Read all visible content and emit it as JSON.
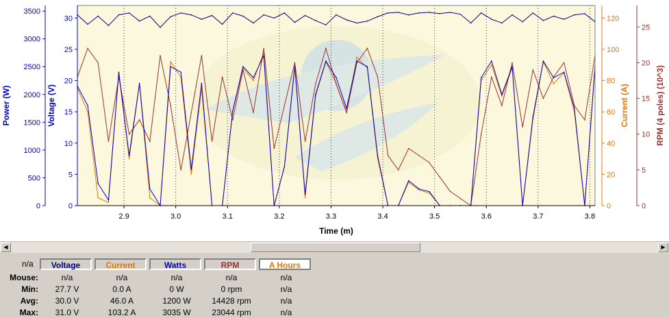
{
  "chart_data": {
    "type": "line",
    "xlabel": "Time (m)",
    "xlim": [
      2.81,
      3.81
    ],
    "x_ticks": [
      "2.9",
      "3.0",
      "3.1",
      "3.2",
      "3.3",
      "3.4",
      "3.5",
      "3.6",
      "3.7",
      "3.8"
    ],
    "axes": {
      "power": {
        "label": "Power (W)",
        "ylim": [
          0,
          3600
        ],
        "ticks": [
          "0",
          "500",
          "1000",
          "1500",
          "2000",
          "2500",
          "3000",
          "3500"
        ],
        "color": "#0000cc"
      },
      "voltage": {
        "label": "Voltage (V)",
        "ylim": [
          0,
          32
        ],
        "ticks": [
          "0",
          "5",
          "10",
          "15",
          "20",
          "25",
          "30"
        ],
        "color": "#0000cc"
      },
      "current": {
        "label": "Current (A)",
        "ylim": [
          0,
          128
        ],
        "ticks": [
          "0",
          "20",
          "40",
          "60",
          "80",
          "100",
          "120"
        ],
        "color": "#e07800"
      },
      "rpm": {
        "label": "RPM (4 poles) (10^3)",
        "ylim": [
          0,
          28
        ],
        "ticks": [
          "0",
          "5",
          "10",
          "15",
          "20",
          "25"
        ],
        "color": "#993333"
      }
    },
    "series": [
      {
        "name": "Voltage",
        "color": "#000080",
        "axis": "voltage",
        "x": [
          2.81,
          2.83,
          2.85,
          2.87,
          2.89,
          2.91,
          2.93,
          2.95,
          2.97,
          2.99,
          3.01,
          3.03,
          3.05,
          3.07,
          3.09,
          3.11,
          3.13,
          3.15,
          3.17,
          3.19,
          3.21,
          3.23,
          3.25,
          3.27,
          3.29,
          3.31,
          3.33,
          3.35,
          3.37,
          3.39,
          3.41,
          3.43,
          3.45,
          3.47,
          3.49,
          3.51,
          3.53,
          3.55,
          3.57,
          3.59,
          3.61,
          3.63,
          3.65,
          3.67,
          3.69,
          3.71,
          3.73,
          3.75,
          3.77,
          3.79,
          3.81
        ],
        "values": [
          30.5,
          29.0,
          30.3,
          28.8,
          30.5,
          30.8,
          29.5,
          30.3,
          28.5,
          30.2,
          30.8,
          30.5,
          29.8,
          30.4,
          29.0,
          30.8,
          30.3,
          29.2,
          30.5,
          30.0,
          30.8,
          29.3,
          30.4,
          29.6,
          28.9,
          30.5,
          29.7,
          29.2,
          29.5,
          30.2,
          30.8,
          30.9,
          30.5,
          30.8,
          30.9,
          30.7,
          30.9,
          30.6,
          29.2,
          30.8,
          29.8,
          29.2,
          30.5,
          29.4,
          30.8,
          29.6,
          30.3,
          29.8,
          30.5,
          30.7,
          29.4
        ]
      },
      {
        "name": "Current",
        "color": "#e07800",
        "axis": "current",
        "x": [
          2.81,
          2.83,
          2.85,
          2.87,
          2.89,
          2.91,
          2.93,
          2.95,
          2.97,
          2.99,
          3.01,
          3.03,
          3.05,
          3.07,
          3.09,
          3.11,
          3.13,
          3.15,
          3.17,
          3.19,
          3.21,
          3.23,
          3.25,
          3.27,
          3.29,
          3.31,
          3.33,
          3.35,
          3.37,
          3.39,
          3.41,
          3.43,
          3.45,
          3.47,
          3.49,
          3.51,
          3.53,
          3.55,
          3.57,
          3.59,
          3.61,
          3.63,
          3.65,
          3.67,
          3.69,
          3.71,
          3.73,
          3.75,
          3.77,
          3.79,
          3.81
        ],
        "values": [
          75,
          60,
          5,
          2,
          85,
          30,
          78,
          5,
          0,
          92,
          82,
          20,
          75,
          0,
          0,
          60,
          88,
          80,
          98,
          0,
          25,
          90,
          5,
          70,
          92,
          78,
          60,
          95,
          88,
          30,
          0,
          0,
          15,
          10,
          8,
          0,
          0,
          0,
          0,
          80,
          90,
          70,
          88,
          0,
          55,
          92,
          78,
          85,
          60,
          0,
          90
        ]
      },
      {
        "name": "RPM",
        "color": "#993333",
        "axis": "rpm",
        "x": [
          2.81,
          2.83,
          2.85,
          2.87,
          2.89,
          2.91,
          2.93,
          2.95,
          2.97,
          2.99,
          3.01,
          3.03,
          3.05,
          3.07,
          3.09,
          3.11,
          3.13,
          3.15,
          3.17,
          3.19,
          3.21,
          3.23,
          3.25,
          3.27,
          3.29,
          3.31,
          3.33,
          3.35,
          3.37,
          3.39,
          3.41,
          3.43,
          3.45,
          3.47,
          3.49,
          3.51,
          3.53,
          3.55,
          3.57,
          3.59,
          3.61,
          3.63,
          3.65,
          3.67,
          3.69,
          3.71,
          3.73,
          3.75,
          3.77,
          3.79,
          3.81
        ],
        "values": [
          18,
          22,
          20,
          9,
          18,
          10,
          12,
          9,
          21,
          14,
          5,
          13,
          21,
          9,
          18,
          12,
          19,
          13,
          22,
          8,
          14,
          20,
          9,
          17,
          22,
          17,
          13,
          20,
          22,
          18,
          7,
          5,
          8,
          7,
          6,
          4,
          2,
          1,
          0,
          10,
          18,
          14,
          20,
          11,
          19,
          15,
          18,
          20,
          14,
          12,
          21
        ]
      },
      {
        "name": "Watts",
        "color": "#0000cc",
        "axis": "power",
        "x": [
          2.81,
          2.83,
          2.85,
          2.87,
          2.89,
          2.91,
          2.93,
          2.95,
          2.97,
          2.99,
          3.01,
          3.03,
          3.05,
          3.07,
          3.09,
          3.11,
          3.13,
          3.15,
          3.17,
          3.19,
          3.21,
          3.23,
          3.25,
          3.27,
          3.29,
          3.31,
          3.33,
          3.35,
          3.37,
          3.39,
          3.41,
          3.43,
          3.45,
          3.47,
          3.49,
          3.51,
          3.53,
          3.55,
          3.57,
          3.59,
          3.61,
          3.63,
          3.65,
          3.67,
          3.69,
          3.71,
          3.73,
          3.75,
          3.77,
          3.79,
          3.81
        ],
        "values": [
          2150,
          1800,
          400,
          100,
          2400,
          900,
          2200,
          300,
          0,
          2500,
          2400,
          650,
          2200,
          0,
          0,
          1700,
          2500,
          2300,
          2700,
          0,
          700,
          2500,
          200,
          2000,
          2600,
          2300,
          1750,
          2600,
          2500,
          900,
          0,
          0,
          450,
          300,
          250,
          0,
          0,
          0,
          0,
          2300,
          2600,
          2000,
          2500,
          0,
          1600,
          2600,
          2300,
          2400,
          1750,
          0,
          2500
        ]
      }
    ]
  },
  "stats": {
    "corner": "n/a",
    "columns": [
      "Voltage",
      "Current",
      "Watts",
      "RPM",
      "A Hours"
    ],
    "column_colors": [
      "#000080",
      "#e07800",
      "#0000cc",
      "#993333",
      "#e07800"
    ],
    "rows": [
      {
        "label": "Mouse:",
        "values": [
          "n/a",
          "n/a",
          "n/a",
          "n/a",
          "n/a"
        ]
      },
      {
        "label": "Min:",
        "values": [
          "27.7 V",
          "0.0 A",
          "0 W",
          "0 rpm",
          "n/a"
        ]
      },
      {
        "label": "Avg:",
        "values": [
          "30.0 V",
          "46.0 A",
          "1200 W",
          "14428 rpm",
          "n/a"
        ]
      },
      {
        "label": "Max:",
        "values": [
          "31.0 V",
          "103.2 A",
          "3035 W",
          "23044 rpm",
          "n/a"
        ]
      }
    ]
  },
  "scrollbar": {
    "left_arrow": "◀",
    "right_arrow": "▶"
  }
}
